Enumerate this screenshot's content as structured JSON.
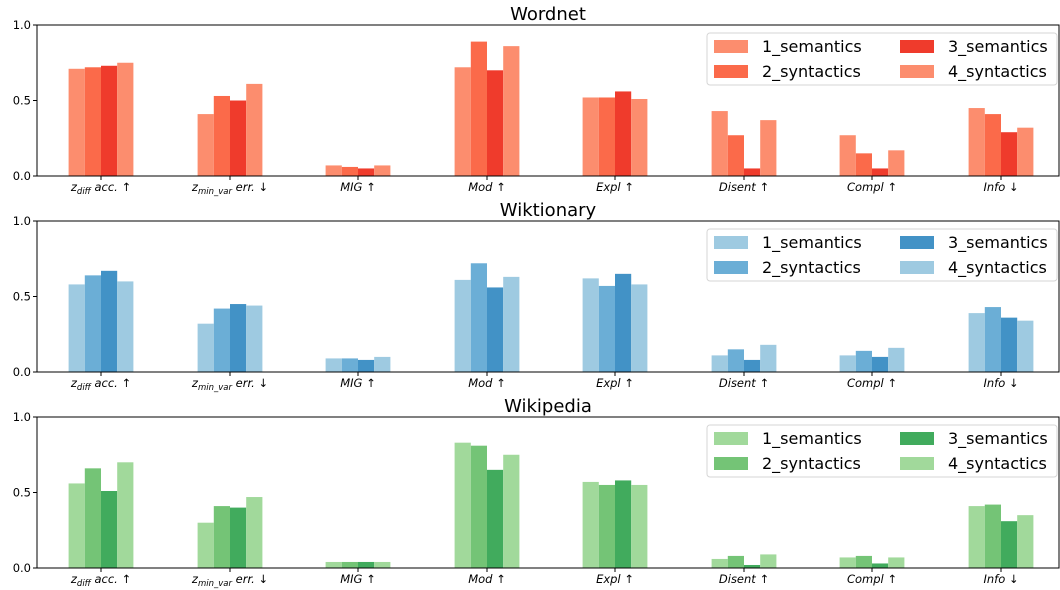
{
  "chart_data": [
    {
      "type": "bar",
      "title": "Wordnet",
      "ylim": [
        0,
        1.0
      ],
      "yticks": [
        "0.0",
        "0.5",
        "1.0"
      ],
      "categories": [
        "z_diff acc. ↑",
        "z_min_var err. ↓",
        "MIG ↑",
        "Mod ↑",
        "Expl ↑",
        "Disent ↑",
        "Compl ↑",
        "Info ↓"
      ],
      "legend_position": "top-right",
      "series": [
        {
          "name": "1_semantics",
          "color": "#fc8d6e",
          "values": [
            0.71,
            0.41,
            0.07,
            0.72,
            0.52,
            0.43,
            0.27,
            0.45
          ]
        },
        {
          "name": "2_syntactics",
          "color": "#fb6a4a",
          "values": [
            0.72,
            0.53,
            0.06,
            0.89,
            0.52,
            0.27,
            0.15,
            0.41
          ]
        },
        {
          "name": "3_semantics",
          "color": "#ef3b2c",
          "values": [
            0.73,
            0.5,
            0.05,
            0.7,
            0.56,
            0.05,
            0.05,
            0.29
          ]
        },
        {
          "name": "4_syntactics",
          "color": "#fc8d6e",
          "values": [
            0.75,
            0.61,
            0.07,
            0.86,
            0.51,
            0.37,
            0.17,
            0.32
          ]
        }
      ]
    },
    {
      "type": "bar",
      "title": "Wiktionary",
      "ylim": [
        0,
        1.0
      ],
      "yticks": [
        "0.0",
        "0.5",
        "1.0"
      ],
      "categories": [
        "z_diff acc. ↑",
        "z_min_var err. ↓",
        "MIG ↑",
        "Mod ↑",
        "Expl ↑",
        "Disent ↑",
        "Compl ↑",
        "Info ↓"
      ],
      "legend_position": "top-right",
      "series": [
        {
          "name": "1_semantics",
          "color": "#9ecae1",
          "values": [
            0.58,
            0.32,
            0.09,
            0.61,
            0.62,
            0.11,
            0.11,
            0.39
          ]
        },
        {
          "name": "2_syntactics",
          "color": "#6baed6",
          "values": [
            0.64,
            0.42,
            0.09,
            0.72,
            0.57,
            0.15,
            0.14,
            0.43
          ]
        },
        {
          "name": "3_semantics",
          "color": "#4292c6",
          "values": [
            0.67,
            0.45,
            0.08,
            0.56,
            0.65,
            0.08,
            0.1,
            0.36
          ]
        },
        {
          "name": "4_syntactics",
          "color": "#9ecae1",
          "values": [
            0.6,
            0.44,
            0.1,
            0.63,
            0.58,
            0.18,
            0.16,
            0.34
          ]
        }
      ]
    },
    {
      "type": "bar",
      "title": "Wikipedia",
      "ylim": [
        0,
        1.0
      ],
      "yticks": [
        "0.0",
        "0.5",
        "1.0"
      ],
      "categories": [
        "z_diff acc. ↑",
        "z_min_var err. ↓",
        "MIG ↑",
        "Mod ↑",
        "Expl ↑",
        "Disent ↑",
        "Compl ↑",
        "Info ↓"
      ],
      "legend_position": "top-right",
      "series": [
        {
          "name": "1_semantics",
          "color": "#a1d99b",
          "values": [
            0.56,
            0.3,
            0.04,
            0.83,
            0.57,
            0.06,
            0.07,
            0.41
          ]
        },
        {
          "name": "2_syntactics",
          "color": "#74c476",
          "values": [
            0.66,
            0.41,
            0.04,
            0.81,
            0.55,
            0.08,
            0.08,
            0.42
          ]
        },
        {
          "name": "3_semantics",
          "color": "#41ab5d",
          "values": [
            0.51,
            0.4,
            0.04,
            0.65,
            0.58,
            0.02,
            0.03,
            0.31
          ]
        },
        {
          "name": "4_syntactics",
          "color": "#a1d99b",
          "values": [
            0.7,
            0.47,
            0.04,
            0.75,
            0.55,
            0.09,
            0.07,
            0.35
          ]
        }
      ]
    }
  ]
}
